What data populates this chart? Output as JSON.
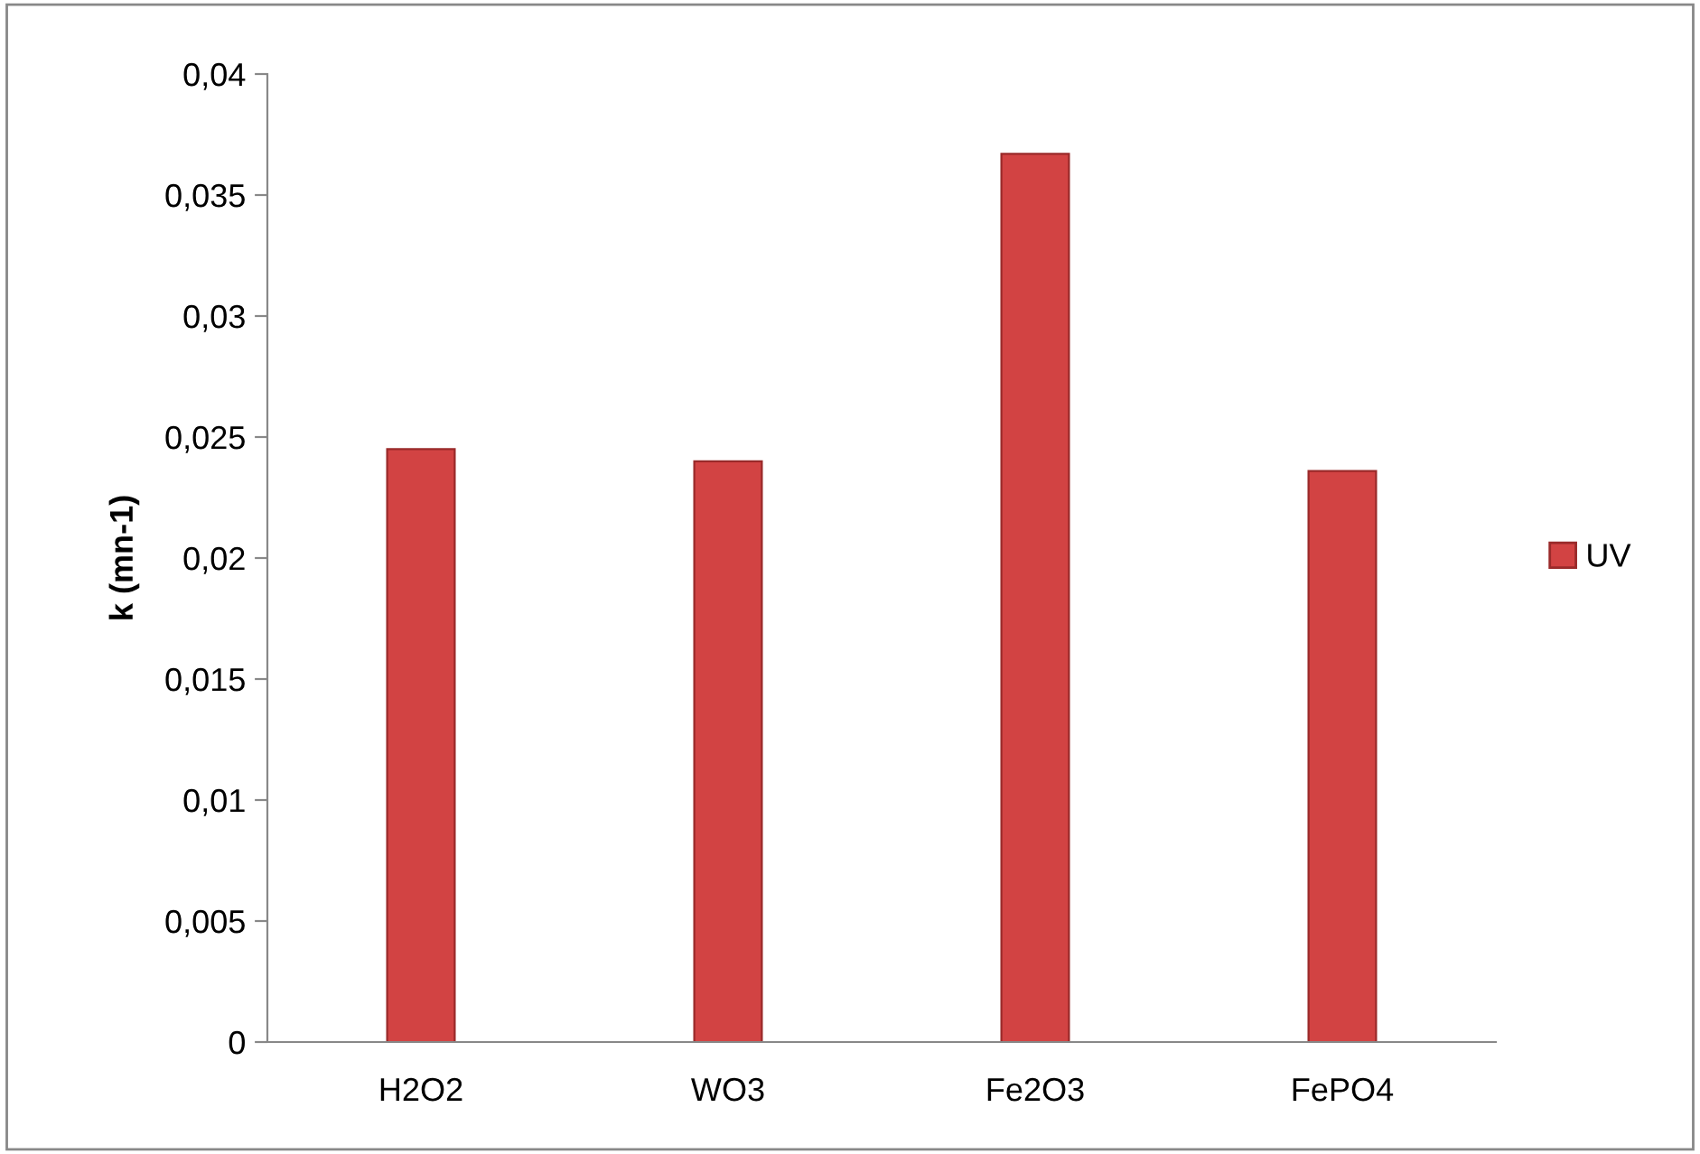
{
  "chart_data": {
    "type": "bar",
    "ylabel": "k (mn-1)",
    "categories": [
      "H2O2",
      "WO3",
      "Fe2O3",
      "FePO4"
    ],
    "series": [
      {
        "name": "UV",
        "color": "#d24343",
        "values": [
          0.0245,
          0.024,
          0.0367,
          0.0236
        ]
      }
    ],
    "ylim": [
      0,
      0.04
    ],
    "yticks": [
      0,
      {
        "value": 0.005,
        "label": "0,005"
      },
      {
        "value": 0.01,
        "label": "0,01"
      },
      {
        "value": 0.015,
        "label": "0,015"
      },
      {
        "value": 0.02,
        "label": "0,02"
      },
      {
        "value": 0.025,
        "label": "0,025"
      },
      {
        "value": 0.03,
        "label": "0,03"
      },
      {
        "value": 0.035,
        "label": "0,035"
      },
      {
        "value": 0.04,
        "label": "0,04"
      }
    ],
    "grid": false,
    "legend": "right"
  }
}
